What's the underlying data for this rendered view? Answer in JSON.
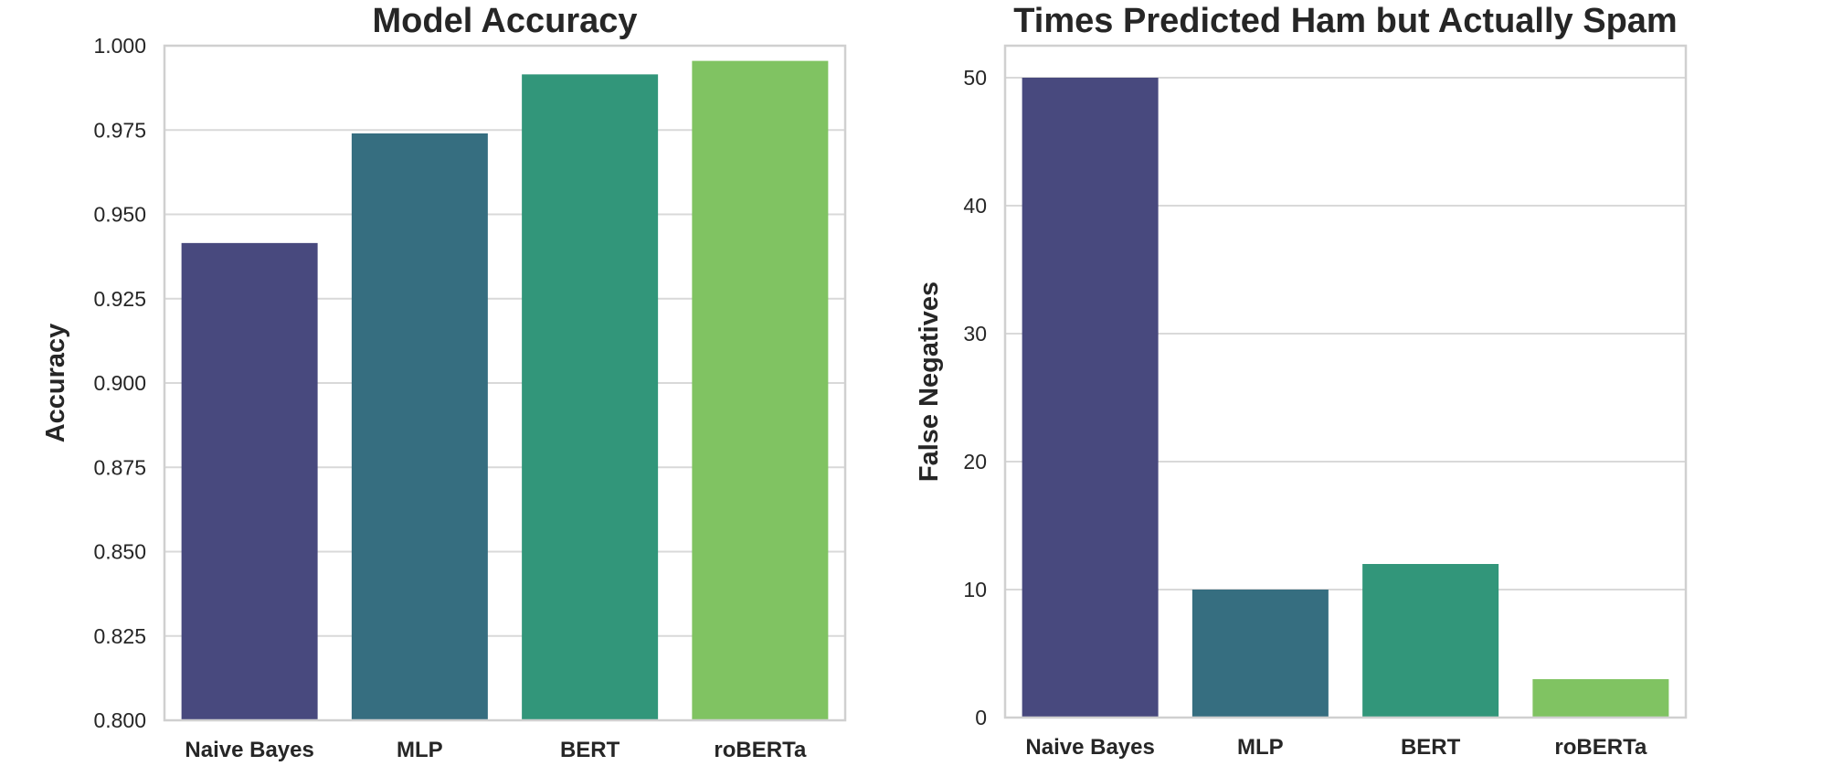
{
  "chart_data": [
    {
      "type": "bar",
      "title": "Model Accuracy",
      "xlabel": "",
      "ylabel": "Accuracy",
      "categories": [
        "Naive Bayes",
        "MLP",
        "BERT",
        "roBERTa"
      ],
      "values": [
        0.9415,
        0.974,
        0.9915,
        0.9955
      ],
      "colors": [
        "#48497e",
        "#366e80",
        "#32967a",
        "#80c362"
      ],
      "ylim": [
        0.8,
        1.0
      ],
      "yticks": [
        0.8,
        0.825,
        0.85,
        0.875,
        0.9,
        0.925,
        0.95,
        0.975,
        1.0
      ],
      "ytick_labels": [
        "0.800",
        "0.825",
        "0.850",
        "0.875",
        "0.900",
        "0.925",
        "0.950",
        "0.975",
        "1.000"
      ],
      "grid": true
    },
    {
      "type": "bar",
      "title": "Times Predicted Ham but Actually Spam",
      "xlabel": "",
      "ylabel": "False Negatives",
      "categories": [
        "Naive Bayes",
        "MLP",
        "BERT",
        "roBERTa"
      ],
      "values": [
        50,
        10,
        12,
        3
      ],
      "colors": [
        "#48497e",
        "#366e80",
        "#32967a",
        "#80c362"
      ],
      "ylim": [
        0,
        52.5
      ],
      "yticks": [
        0,
        10,
        20,
        30,
        40,
        50
      ],
      "ytick_labels": [
        "0",
        "10",
        "20",
        "30",
        "40",
        "50"
      ],
      "grid": true
    }
  ]
}
